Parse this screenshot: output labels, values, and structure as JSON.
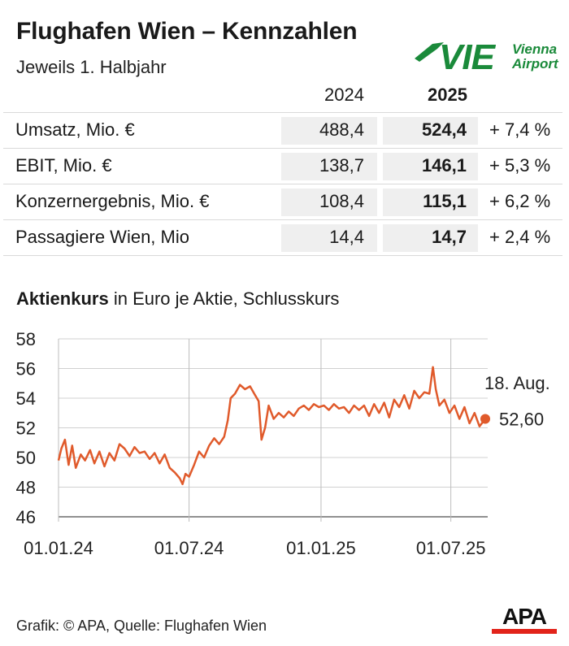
{
  "title": "Flughafen Wien – Kennzahlen",
  "subtitle": "Jeweils 1. Halbjahr",
  "logo": {
    "mark": "VIE",
    "line1": "Vienna",
    "line2": "Airport",
    "color": "#1a8a3a"
  },
  "table": {
    "year1": "2024",
    "year2": "2025",
    "rows": [
      {
        "label": "Umsatz, Mio. €",
        "v2024": "488,4",
        "v2025": "524,4",
        "change": "+ 7,4 %"
      },
      {
        "label": "EBIT, Mio. €",
        "v2024": "138,7",
        "v2025": "146,1",
        "change": "+ 5,3 %"
      },
      {
        "label": "Konzernergebnis, Mio. €",
        "v2024": "108,4",
        "v2025": "115,1",
        "change": "+ 6,2 %"
      },
      {
        "label": "Passagiere Wien, Mio",
        "v2024": "14,4",
        "v2025": "14,7",
        "change": "+ 2,4 %"
      }
    ]
  },
  "chart_title_bold": "Aktienkurs",
  "chart_title_rest": " in Euro je Aktie, Schlusskurs",
  "chart_data": {
    "type": "line",
    "ylim": [
      46,
      58
    ],
    "yticks": [
      46,
      48,
      50,
      52,
      54,
      56,
      58
    ],
    "xlim": [
      "2024-01-01",
      "2025-08-18"
    ],
    "xticks": [
      {
        "date": "2024-01-01",
        "label": "01.01.24"
      },
      {
        "date": "2024-07-01",
        "label": "01.07.24"
      },
      {
        "date": "2025-01-01",
        "label": "01.01.25"
      },
      {
        "date": "2025-07-01",
        "label": "01.07.25"
      }
    ],
    "series": [
      {
        "color": "#e05a2b",
        "points": [
          [
            "2024-01-01",
            49.8
          ],
          [
            "2024-01-05",
            50.6
          ],
          [
            "2024-01-10",
            51.2
          ],
          [
            "2024-01-15",
            49.5
          ],
          [
            "2024-01-20",
            50.8
          ],
          [
            "2024-01-25",
            49.3
          ],
          [
            "2024-02-01",
            50.2
          ],
          [
            "2024-02-07",
            49.8
          ],
          [
            "2024-02-14",
            50.5
          ],
          [
            "2024-02-20",
            49.6
          ],
          [
            "2024-02-27",
            50.4
          ],
          [
            "2024-03-05",
            49.4
          ],
          [
            "2024-03-12",
            50.3
          ],
          [
            "2024-03-19",
            49.8
          ],
          [
            "2024-03-26",
            50.9
          ],
          [
            "2024-04-02",
            50.6
          ],
          [
            "2024-04-09",
            50.1
          ],
          [
            "2024-04-16",
            50.7
          ],
          [
            "2024-04-23",
            50.3
          ],
          [
            "2024-04-30",
            50.4
          ],
          [
            "2024-05-07",
            49.9
          ],
          [
            "2024-05-14",
            50.3
          ],
          [
            "2024-05-21",
            49.6
          ],
          [
            "2024-05-28",
            50.2
          ],
          [
            "2024-06-04",
            49.3
          ],
          [
            "2024-06-11",
            49.0
          ],
          [
            "2024-06-18",
            48.6
          ],
          [
            "2024-06-22",
            48.2
          ],
          [
            "2024-06-26",
            48.9
          ],
          [
            "2024-07-01",
            48.7
          ],
          [
            "2024-07-08",
            49.5
          ],
          [
            "2024-07-15",
            50.4
          ],
          [
            "2024-07-22",
            50.0
          ],
          [
            "2024-07-29",
            50.8
          ],
          [
            "2024-08-05",
            51.3
          ],
          [
            "2024-08-12",
            50.9
          ],
          [
            "2024-08-19",
            51.4
          ],
          [
            "2024-08-24",
            52.5
          ],
          [
            "2024-08-28",
            54.0
          ],
          [
            "2024-09-03",
            54.3
          ],
          [
            "2024-09-10",
            54.9
          ],
          [
            "2024-09-17",
            54.6
          ],
          [
            "2024-09-24",
            54.8
          ],
          [
            "2024-10-01",
            54.2
          ],
          [
            "2024-10-06",
            53.8
          ],
          [
            "2024-10-10",
            51.2
          ],
          [
            "2024-10-15",
            52.0
          ],
          [
            "2024-10-20",
            53.5
          ],
          [
            "2024-10-27",
            52.6
          ],
          [
            "2024-11-03",
            53.0
          ],
          [
            "2024-11-10",
            52.7
          ],
          [
            "2024-11-17",
            53.1
          ],
          [
            "2024-11-24",
            52.8
          ],
          [
            "2024-12-01",
            53.3
          ],
          [
            "2024-12-08",
            53.5
          ],
          [
            "2024-12-15",
            53.2
          ],
          [
            "2024-12-22",
            53.6
          ],
          [
            "2024-12-29",
            53.4
          ],
          [
            "2025-01-05",
            53.5
          ],
          [
            "2025-01-12",
            53.2
          ],
          [
            "2025-01-19",
            53.6
          ],
          [
            "2025-01-26",
            53.3
          ],
          [
            "2025-02-02",
            53.4
          ],
          [
            "2025-02-09",
            53.0
          ],
          [
            "2025-02-16",
            53.5
          ],
          [
            "2025-02-23",
            53.2
          ],
          [
            "2025-03-02",
            53.5
          ],
          [
            "2025-03-09",
            52.8
          ],
          [
            "2025-03-16",
            53.6
          ],
          [
            "2025-03-23",
            53.0
          ],
          [
            "2025-03-30",
            53.7
          ],
          [
            "2025-04-06",
            52.7
          ],
          [
            "2025-04-13",
            53.9
          ],
          [
            "2025-04-20",
            53.4
          ],
          [
            "2025-04-27",
            54.2
          ],
          [
            "2025-05-04",
            53.3
          ],
          [
            "2025-05-11",
            54.5
          ],
          [
            "2025-05-18",
            54.0
          ],
          [
            "2025-05-25",
            54.4
          ],
          [
            "2025-06-01",
            54.3
          ],
          [
            "2025-06-06",
            56.1
          ],
          [
            "2025-06-10",
            54.6
          ],
          [
            "2025-06-15",
            53.5
          ],
          [
            "2025-06-22",
            53.9
          ],
          [
            "2025-06-29",
            53.0
          ],
          [
            "2025-07-06",
            53.5
          ],
          [
            "2025-07-13",
            52.6
          ],
          [
            "2025-07-20",
            53.4
          ],
          [
            "2025-07-27",
            52.3
          ],
          [
            "2025-08-03",
            53.0
          ],
          [
            "2025-08-10",
            52.1
          ],
          [
            "2025-08-18",
            52.6
          ]
        ]
      }
    ],
    "annotation": {
      "date_label": "18. Aug.",
      "value_label": "52,60",
      "x": "2025-08-18",
      "y": 52.6
    }
  },
  "footer": "Grafik: © APA, Quelle: Flughafen Wien",
  "apa_logo": {
    "text": "APA",
    "color": "#e2231a"
  }
}
